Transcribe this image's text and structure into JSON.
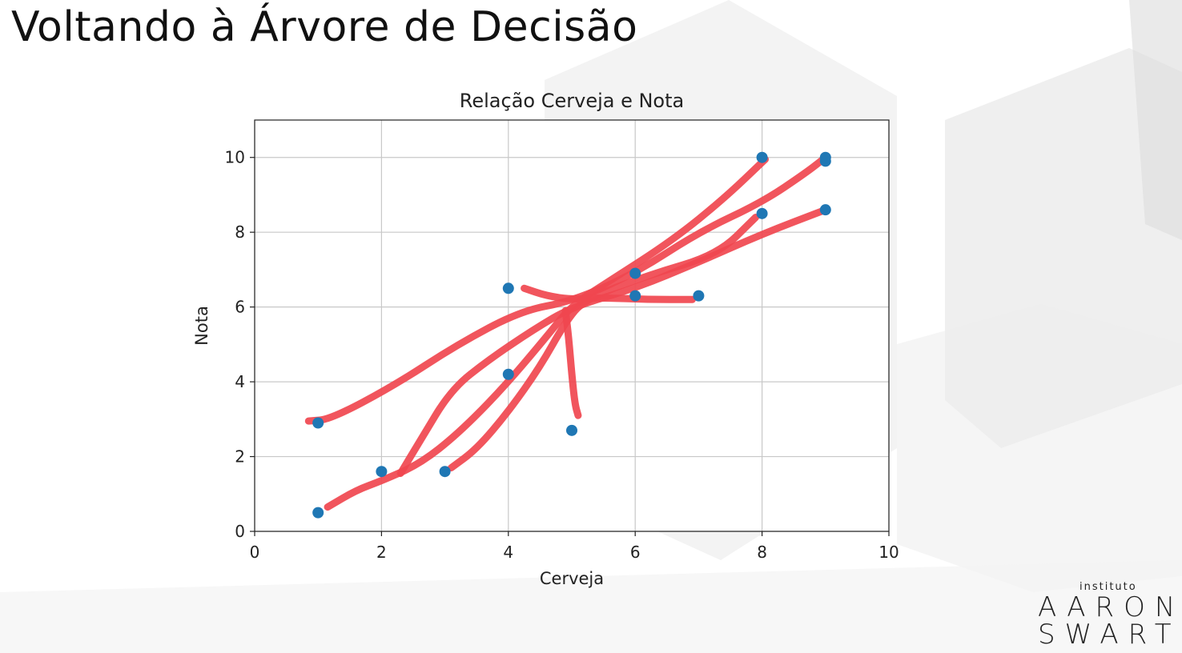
{
  "slide": {
    "title": "Voltando à Árvore de Decisão"
  },
  "logo": {
    "small_text": "instituto",
    "line1": "AARON",
    "line2": "SWARTZ"
  },
  "colors": {
    "points": "#1f77b4",
    "annotation": "#f0474f",
    "grid": "#c8c8c8"
  },
  "chart_data": {
    "type": "scatter",
    "title": "Relação Cerveja e Nota",
    "xlabel": "Cerveja",
    "ylabel": "Nota",
    "xlim": [
      0,
      10
    ],
    "ylim": [
      0,
      11
    ],
    "xticks": [
      0,
      2,
      4,
      6,
      8,
      10
    ],
    "yticks": [
      0,
      2,
      4,
      6,
      8,
      10
    ],
    "grid": true,
    "points": [
      {
        "x": 1,
        "y": 0.5
      },
      {
        "x": 1,
        "y": 2.9
      },
      {
        "x": 2,
        "y": 1.6
      },
      {
        "x": 3,
        "y": 1.6
      },
      {
        "x": 4,
        "y": 4.2
      },
      {
        "x": 4,
        "y": 6.5
      },
      {
        "x": 5,
        "y": 2.7
      },
      {
        "x": 6,
        "y": 6.3
      },
      {
        "x": 6,
        "y": 6.9
      },
      {
        "x": 7,
        "y": 6.3
      },
      {
        "x": 8,
        "y": 8.5
      },
      {
        "x": 8,
        "y": 10.0
      },
      {
        "x": 9,
        "y": 8.6
      },
      {
        "x": 9,
        "y": 9.9
      },
      {
        "x": 9,
        "y": 10.0
      }
    ],
    "annotations": [
      [
        [
          0.85,
          2.95
        ],
        [
          1.2,
          3.0
        ],
        [
          2.2,
          3.9
        ],
        [
          3.2,
          5.0
        ],
        [
          4.2,
          5.9
        ],
        [
          5.0,
          6.15
        ],
        [
          6.0,
          6.9
        ],
        [
          7.0,
          8.0
        ],
        [
          8.0,
          8.8
        ],
        [
          8.7,
          9.6
        ],
        [
          9.0,
          10.0
        ]
      ],
      [
        [
          1.15,
          0.65
        ],
        [
          1.6,
          1.1
        ],
        [
          2.0,
          1.35
        ],
        [
          2.6,
          1.8
        ],
        [
          3.2,
          2.6
        ],
        [
          3.9,
          3.8
        ],
        [
          4.6,
          5.2
        ],
        [
          5.0,
          6.05
        ],
        [
          5.6,
          6.7
        ],
        [
          6.6,
          7.8
        ],
        [
          7.4,
          8.9
        ],
        [
          8.05,
          9.95
        ]
      ],
      [
        [
          2.3,
          1.55
        ],
        [
          2.6,
          2.4
        ],
        [
          3.1,
          3.8
        ],
        [
          3.7,
          4.6
        ],
        [
          4.4,
          5.4
        ],
        [
          5.0,
          6.0
        ],
        [
          6.0,
          6.5
        ],
        [
          7.0,
          7.2
        ],
        [
          8.0,
          7.95
        ],
        [
          9.0,
          8.6
        ]
      ],
      [
        [
          3.1,
          1.7
        ],
        [
          3.5,
          2.2
        ],
        [
          4.0,
          3.2
        ],
        [
          4.5,
          4.4
        ],
        [
          4.9,
          5.6
        ],
        [
          5.2,
          6.2
        ],
        [
          6.2,
          6.85
        ],
        [
          7.3,
          7.4
        ],
        [
          7.9,
          8.4
        ]
      ],
      [
        [
          4.25,
          6.5
        ],
        [
          4.6,
          6.3
        ],
        [
          5.0,
          6.2
        ],
        [
          5.5,
          6.25
        ],
        [
          6.2,
          6.2
        ],
        [
          6.9,
          6.2
        ]
      ],
      [
        [
          4.9,
          5.9
        ],
        [
          4.95,
          5.2
        ],
        [
          5.0,
          4.2
        ],
        [
          5.05,
          3.4
        ],
        [
          5.1,
          3.1
        ]
      ]
    ]
  }
}
